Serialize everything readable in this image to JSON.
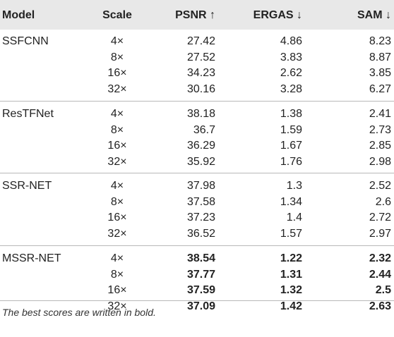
{
  "headers": {
    "model": "Model",
    "scale": "Scale",
    "psnr": "PSNR ↑",
    "ergas": "ERGAS ↓",
    "sam": "SAM ↓"
  },
  "groups": [
    {
      "model": "SSFCNN",
      "bold": false,
      "rows": [
        {
          "scale": "4×",
          "psnr": "27.42",
          "ergas": "4.86",
          "sam": "8.23"
        },
        {
          "scale": "8×",
          "psnr": "27.52",
          "ergas": "3.83",
          "sam": "8.87"
        },
        {
          "scale": "16×",
          "psnr": "34.23",
          "ergas": "2.62",
          "sam": "3.85"
        },
        {
          "scale": "32×",
          "psnr": "30.16",
          "ergas": "3.28",
          "sam": "6.27"
        }
      ]
    },
    {
      "model": "ResTFNet",
      "bold": false,
      "rows": [
        {
          "scale": "4×",
          "psnr": "38.18",
          "ergas": "1.38",
          "sam": "2.41"
        },
        {
          "scale": "8×",
          "psnr": "36.7",
          "ergas": "1.59",
          "sam": "2.73"
        },
        {
          "scale": "16×",
          "psnr": "36.29",
          "ergas": "1.67",
          "sam": "2.85"
        },
        {
          "scale": "32×",
          "psnr": "35.92",
          "ergas": "1.76",
          "sam": "2.98"
        }
      ]
    },
    {
      "model": "SSR-NET",
      "bold": false,
      "rows": [
        {
          "scale": "4×",
          "psnr": "37.98",
          "ergas": "1.3",
          "sam": "2.52"
        },
        {
          "scale": "8×",
          "psnr": "37.58",
          "ergas": "1.34",
          "sam": "2.6"
        },
        {
          "scale": "16×",
          "psnr": "37.23",
          "ergas": "1.4",
          "sam": "2.72"
        },
        {
          "scale": "32×",
          "psnr": "36.52",
          "ergas": "1.57",
          "sam": "2.97"
        }
      ]
    },
    {
      "model": "MSSR-NET",
      "bold": true,
      "rows": [
        {
          "scale": "4×",
          "psnr": "38.54",
          "ergas": "1.22",
          "sam": "2.32"
        },
        {
          "scale": "8×",
          "psnr": "37.77",
          "ergas": "1.31",
          "sam": "2.44"
        },
        {
          "scale": "16×",
          "psnr": "37.59",
          "ergas": "1.32",
          "sam": "2.5"
        },
        {
          "scale": "32×",
          "psnr": "37.09",
          "ergas": "1.42",
          "sam": "2.63"
        }
      ]
    }
  ],
  "footnote": "The best scores are written in bold."
}
